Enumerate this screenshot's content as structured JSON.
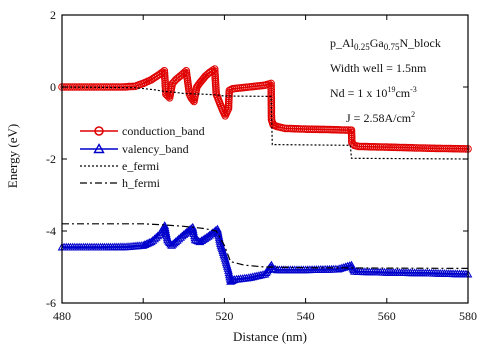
{
  "chart_data": {
    "type": "line",
    "xlabel": "Distance (nm)",
    "ylabel": "Energy (eV)",
    "xlim": [
      480,
      580
    ],
    "ylim": [
      -6,
      2
    ],
    "x_ticks": [
      480,
      500,
      520,
      540,
      560,
      580
    ],
    "y_ticks": [
      -6,
      -4,
      -2,
      0,
      2
    ],
    "x_tick_labels": [
      "480",
      "500",
      "520",
      "540",
      "560",
      "580"
    ],
    "y_tick_labels": [
      "-6",
      "-4",
      "-2",
      "0",
      "2"
    ],
    "grid": false,
    "legend_position": "left-middle",
    "annotations": {
      "line1_pre": "p_Al",
      "line1_sub1": "0.25",
      "line1_mid": "Ga",
      "line1_sub2": "0.75",
      "line1_post": "N_block",
      "line2": "Width well = 1.5nm",
      "line3_pre": "Nd = 1 x 10",
      "line3_sup": "19",
      "line3_post": "cm",
      "line3_sup2": "-3",
      "line4_pre": "J = 2.58A/cm",
      "line4_sup": "2"
    },
    "series": [
      {
        "name": "conduction_band",
        "color": "#e00000",
        "style": "solid",
        "marker": "circle",
        "x": [
          480,
          490,
          495,
          498,
          500,
          502,
          504,
          505.2,
          505.6,
          506.5,
          507.2,
          508.2,
          509.4,
          510.6,
          511.4,
          511.8,
          512.5,
          513.2,
          514.2,
          515.3,
          516.3,
          517.6,
          518.0,
          518.7,
          519.4,
          520.2,
          521.0,
          521.2,
          522.0,
          526,
          530,
          531.5,
          531.6,
          532.0,
          533.0,
          535,
          540,
          545,
          551,
          551.3,
          551.4,
          552.0,
          553.0,
          556,
          560,
          570,
          580
        ],
        "y": [
          0.0,
          0.0,
          0.0,
          0.02,
          0.1,
          0.2,
          0.35,
          0.45,
          -0.2,
          -0.3,
          0.1,
          0.22,
          0.33,
          0.45,
          -0.2,
          -0.3,
          -0.4,
          0.0,
          0.15,
          0.3,
          0.4,
          0.5,
          -0.2,
          -0.4,
          -0.6,
          -0.8,
          -0.6,
          -0.1,
          -0.05,
          0.0,
          0.05,
          0.1,
          -0.9,
          -1.05,
          -1.1,
          -1.15,
          -1.17,
          -1.18,
          -1.2,
          -1.2,
          -1.55,
          -1.62,
          -1.65,
          -1.66,
          -1.67,
          -1.7,
          -1.72
        ]
      },
      {
        "name": "valency_band",
        "color": "#0000cc",
        "style": "solid",
        "marker": "triangle",
        "x": [
          480,
          490,
          496,
          500,
          502,
          504,
          505.3,
          506,
          507,
          508,
          510,
          512.2,
          512.8,
          514,
          516,
          518.3,
          519,
          520,
          521,
          521.5,
          522.5,
          526,
          530,
          531.6,
          532,
          533,
          540,
          548,
          551.3,
          552,
          553,
          560,
          570,
          580
        ],
        "y": [
          -4.45,
          -4.45,
          -4.44,
          -4.4,
          -4.3,
          -4.1,
          -3.85,
          -4.25,
          -4.4,
          -4.3,
          -4.1,
          -3.9,
          -4.25,
          -4.3,
          -4.15,
          -3.95,
          -4.35,
          -4.7,
          -5.1,
          -5.4,
          -5.35,
          -5.3,
          -5.2,
          -4.95,
          -5.05,
          -5.08,
          -5.08,
          -5.06,
          -4.95,
          -5.12,
          -5.13,
          -5.15,
          -5.17,
          -5.2
        ]
      },
      {
        "name": "e_fermi",
        "color": "#000000",
        "style": "dotted",
        "marker": "none",
        "x": [
          480,
          498,
          503,
          505,
          508,
          510,
          515,
          518,
          520,
          531.5,
          531.8,
          551,
          551.3,
          580
        ],
        "y": [
          0.0,
          -0.02,
          -0.08,
          -0.12,
          -0.15,
          -0.18,
          -0.2,
          -0.22,
          -0.25,
          -0.26,
          -1.6,
          -1.62,
          -1.98,
          -2.0
        ]
      },
      {
        "name": "h_fermi",
        "color": "#000000",
        "style": "dashdot",
        "marker": "none",
        "x": [
          480,
          500,
          505,
          510,
          515,
          518,
          520,
          521.5,
          525,
          530,
          540,
          560,
          580
        ],
        "y": [
          -3.8,
          -3.8,
          -3.83,
          -3.87,
          -3.93,
          -4.0,
          -4.4,
          -4.85,
          -4.95,
          -5.0,
          -5.02,
          -5.03,
          -5.04
        ]
      }
    ]
  }
}
